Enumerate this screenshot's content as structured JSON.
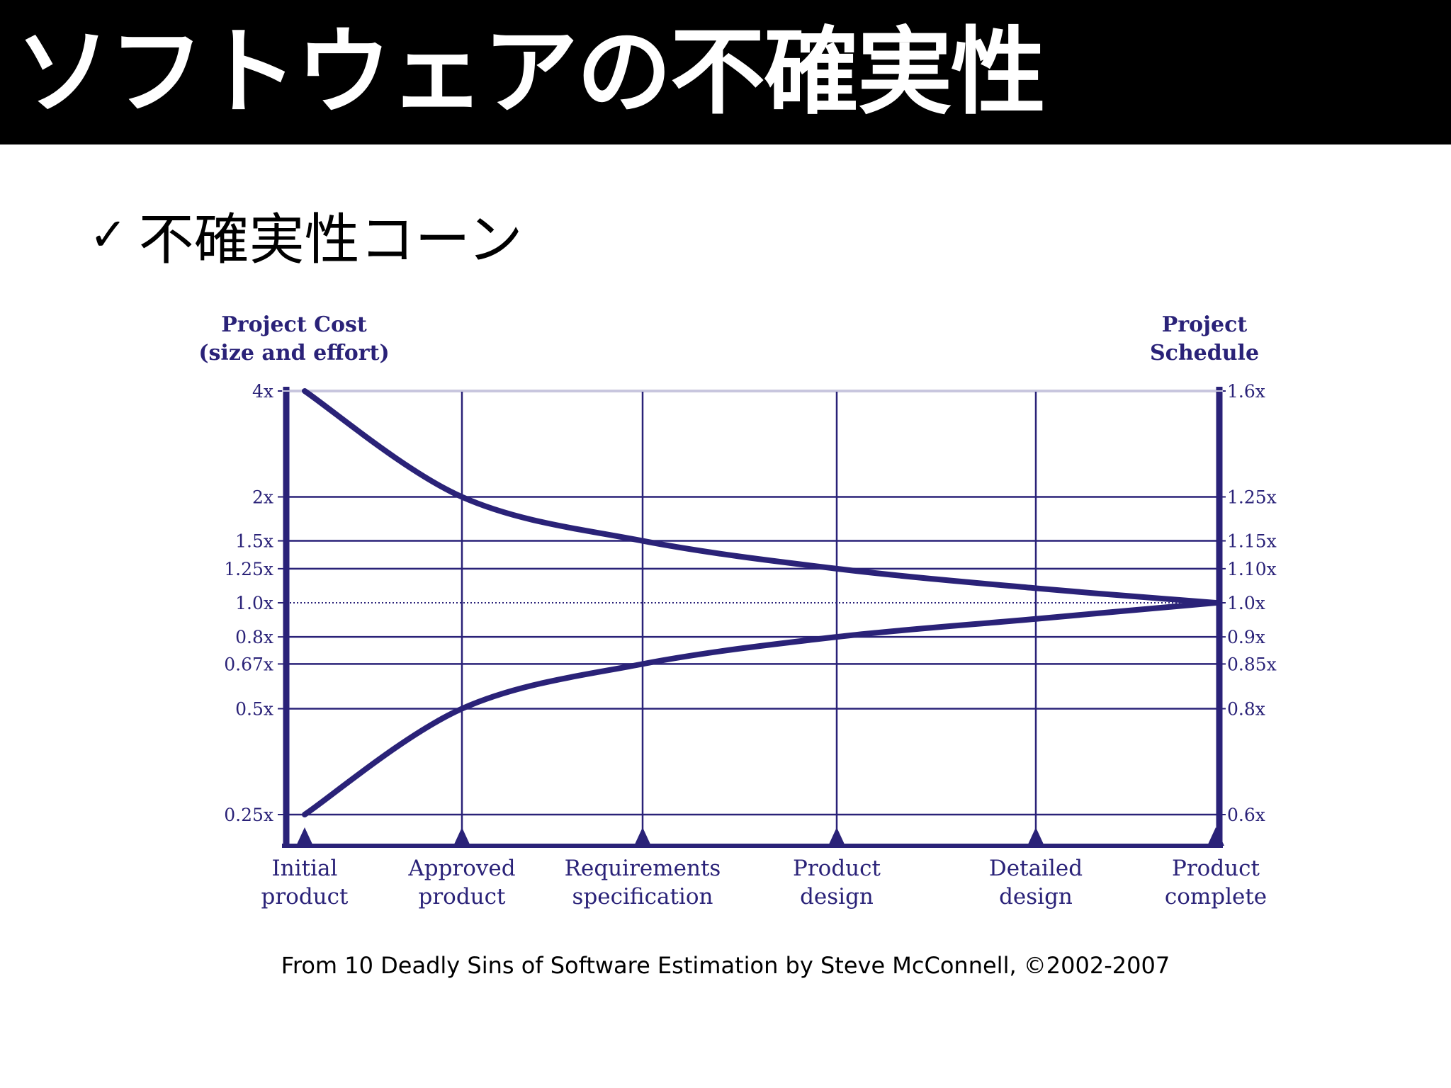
{
  "slide": {
    "title": "ソフトウェアの不確実性",
    "bullet_mark": "✓",
    "bullet_text": "不確実性コーン",
    "caption": "From 10 Deadly Sins of Software Estimation by Steve McConnell, ©2002-2007"
  },
  "colors": {
    "chart": "#2a2278",
    "title_bar": "#000000",
    "title_text": "#ffffff"
  },
  "chart_data": {
    "type": "line",
    "left_axis_title": [
      "Project Cost",
      "(size and effort)"
    ],
    "right_axis_title": [
      "Project",
      "Schedule"
    ],
    "y_scale": "log",
    "ylim": [
      0.2,
      4.0
    ],
    "left_ticks": [
      {
        "value": 4,
        "label": "4x"
      },
      {
        "value": 2,
        "label": "2x"
      },
      {
        "value": 1.5,
        "label": "1.5x"
      },
      {
        "value": 1.25,
        "label": "1.25x"
      },
      {
        "value": 1.0,
        "label": "1.0x"
      },
      {
        "value": 0.8,
        "label": "0.8x"
      },
      {
        "value": 0.67,
        "label": "0.67x"
      },
      {
        "value": 0.5,
        "label": "0.5x"
      },
      {
        "value": 0.25,
        "label": "0.25x"
      }
    ],
    "right_tick_labels": [
      "1.6x",
      "1.25x",
      "1.15x",
      "1.10x",
      "1.0x",
      "0.9x",
      "0.85x",
      "0.8x",
      "0.6x"
    ],
    "categories": [
      [
        "Initial",
        "product"
      ],
      [
        "Approved",
        "product"
      ],
      [
        "Requirements",
        "specification"
      ],
      [
        "Product",
        "design"
      ],
      [
        "Detailed",
        "design"
      ],
      [
        "Product",
        "complete"
      ]
    ],
    "series": [
      {
        "values": [
          4,
          2,
          1.5,
          1.25,
          1.1,
          1.0
        ]
      },
      {
        "values": [
          0.25,
          0.5,
          0.67,
          0.8,
          0.9,
          1.0
        ]
      }
    ],
    "reference_line": 1.0,
    "grid": true,
    "legend": "none"
  }
}
